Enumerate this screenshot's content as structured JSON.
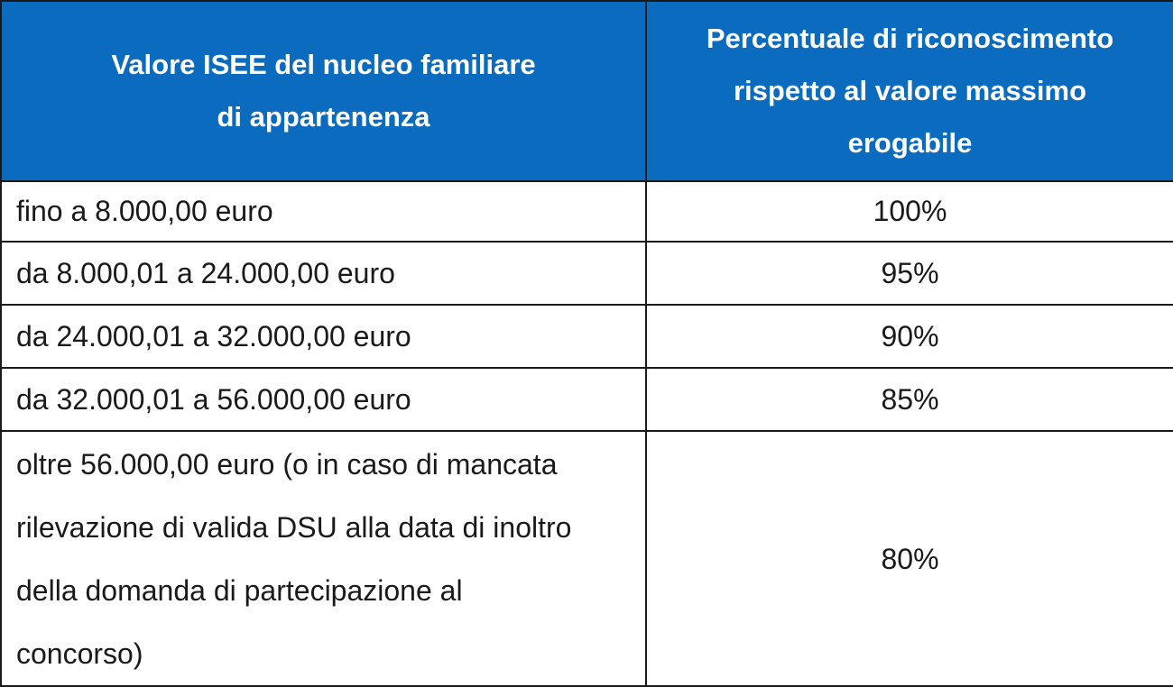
{
  "table": {
    "header": [
      "Valore ISEE del nucleo familiare di appartenenza",
      "Percentuale di riconoscimento rispetto al valore massimo erogabile"
    ],
    "rows": [
      [
        "fino a 8.000,00 euro",
        "100%"
      ],
      [
        "da 8.000,01 a 24.000,00 euro",
        "95%"
      ],
      [
        "da 24.000,01 a 32.000,00 euro",
        "90%"
      ],
      [
        "da 32.000,01 a 56.000,00 euro",
        "85%"
      ],
      [
        "oltre 56.000,00 euro (o in caso di mancata rilevazione di valida DSU alla data di inoltro della domanda di partecipazione al concorso)",
        "80%"
      ]
    ]
  }
}
